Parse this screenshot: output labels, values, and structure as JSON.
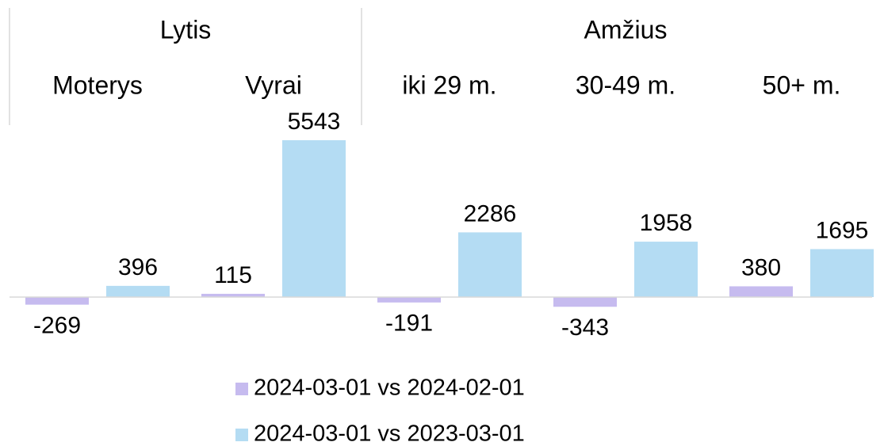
{
  "chart_data": {
    "type": "bar",
    "groups": [
      {
        "name": "Lytis",
        "categories": [
          "Moterys",
          "Vyrai"
        ]
      },
      {
        "name": "Amžius",
        "categories": [
          "iki 29 m.",
          "30-49 m.",
          "50+ m."
        ]
      }
    ],
    "series": [
      {
        "name": "2024-03-01 vs 2024-02-01",
        "color": "#c6bbef",
        "values": [
          -269,
          115,
          -191,
          -343,
          380
        ]
      },
      {
        "name": "2024-03-01 vs 2023-03-01",
        "color": "#b4dcf3",
        "values": [
          396,
          5543,
          2286,
          1958,
          1695
        ]
      }
    ],
    "ylim": [
      -500,
      5600
    ]
  }
}
